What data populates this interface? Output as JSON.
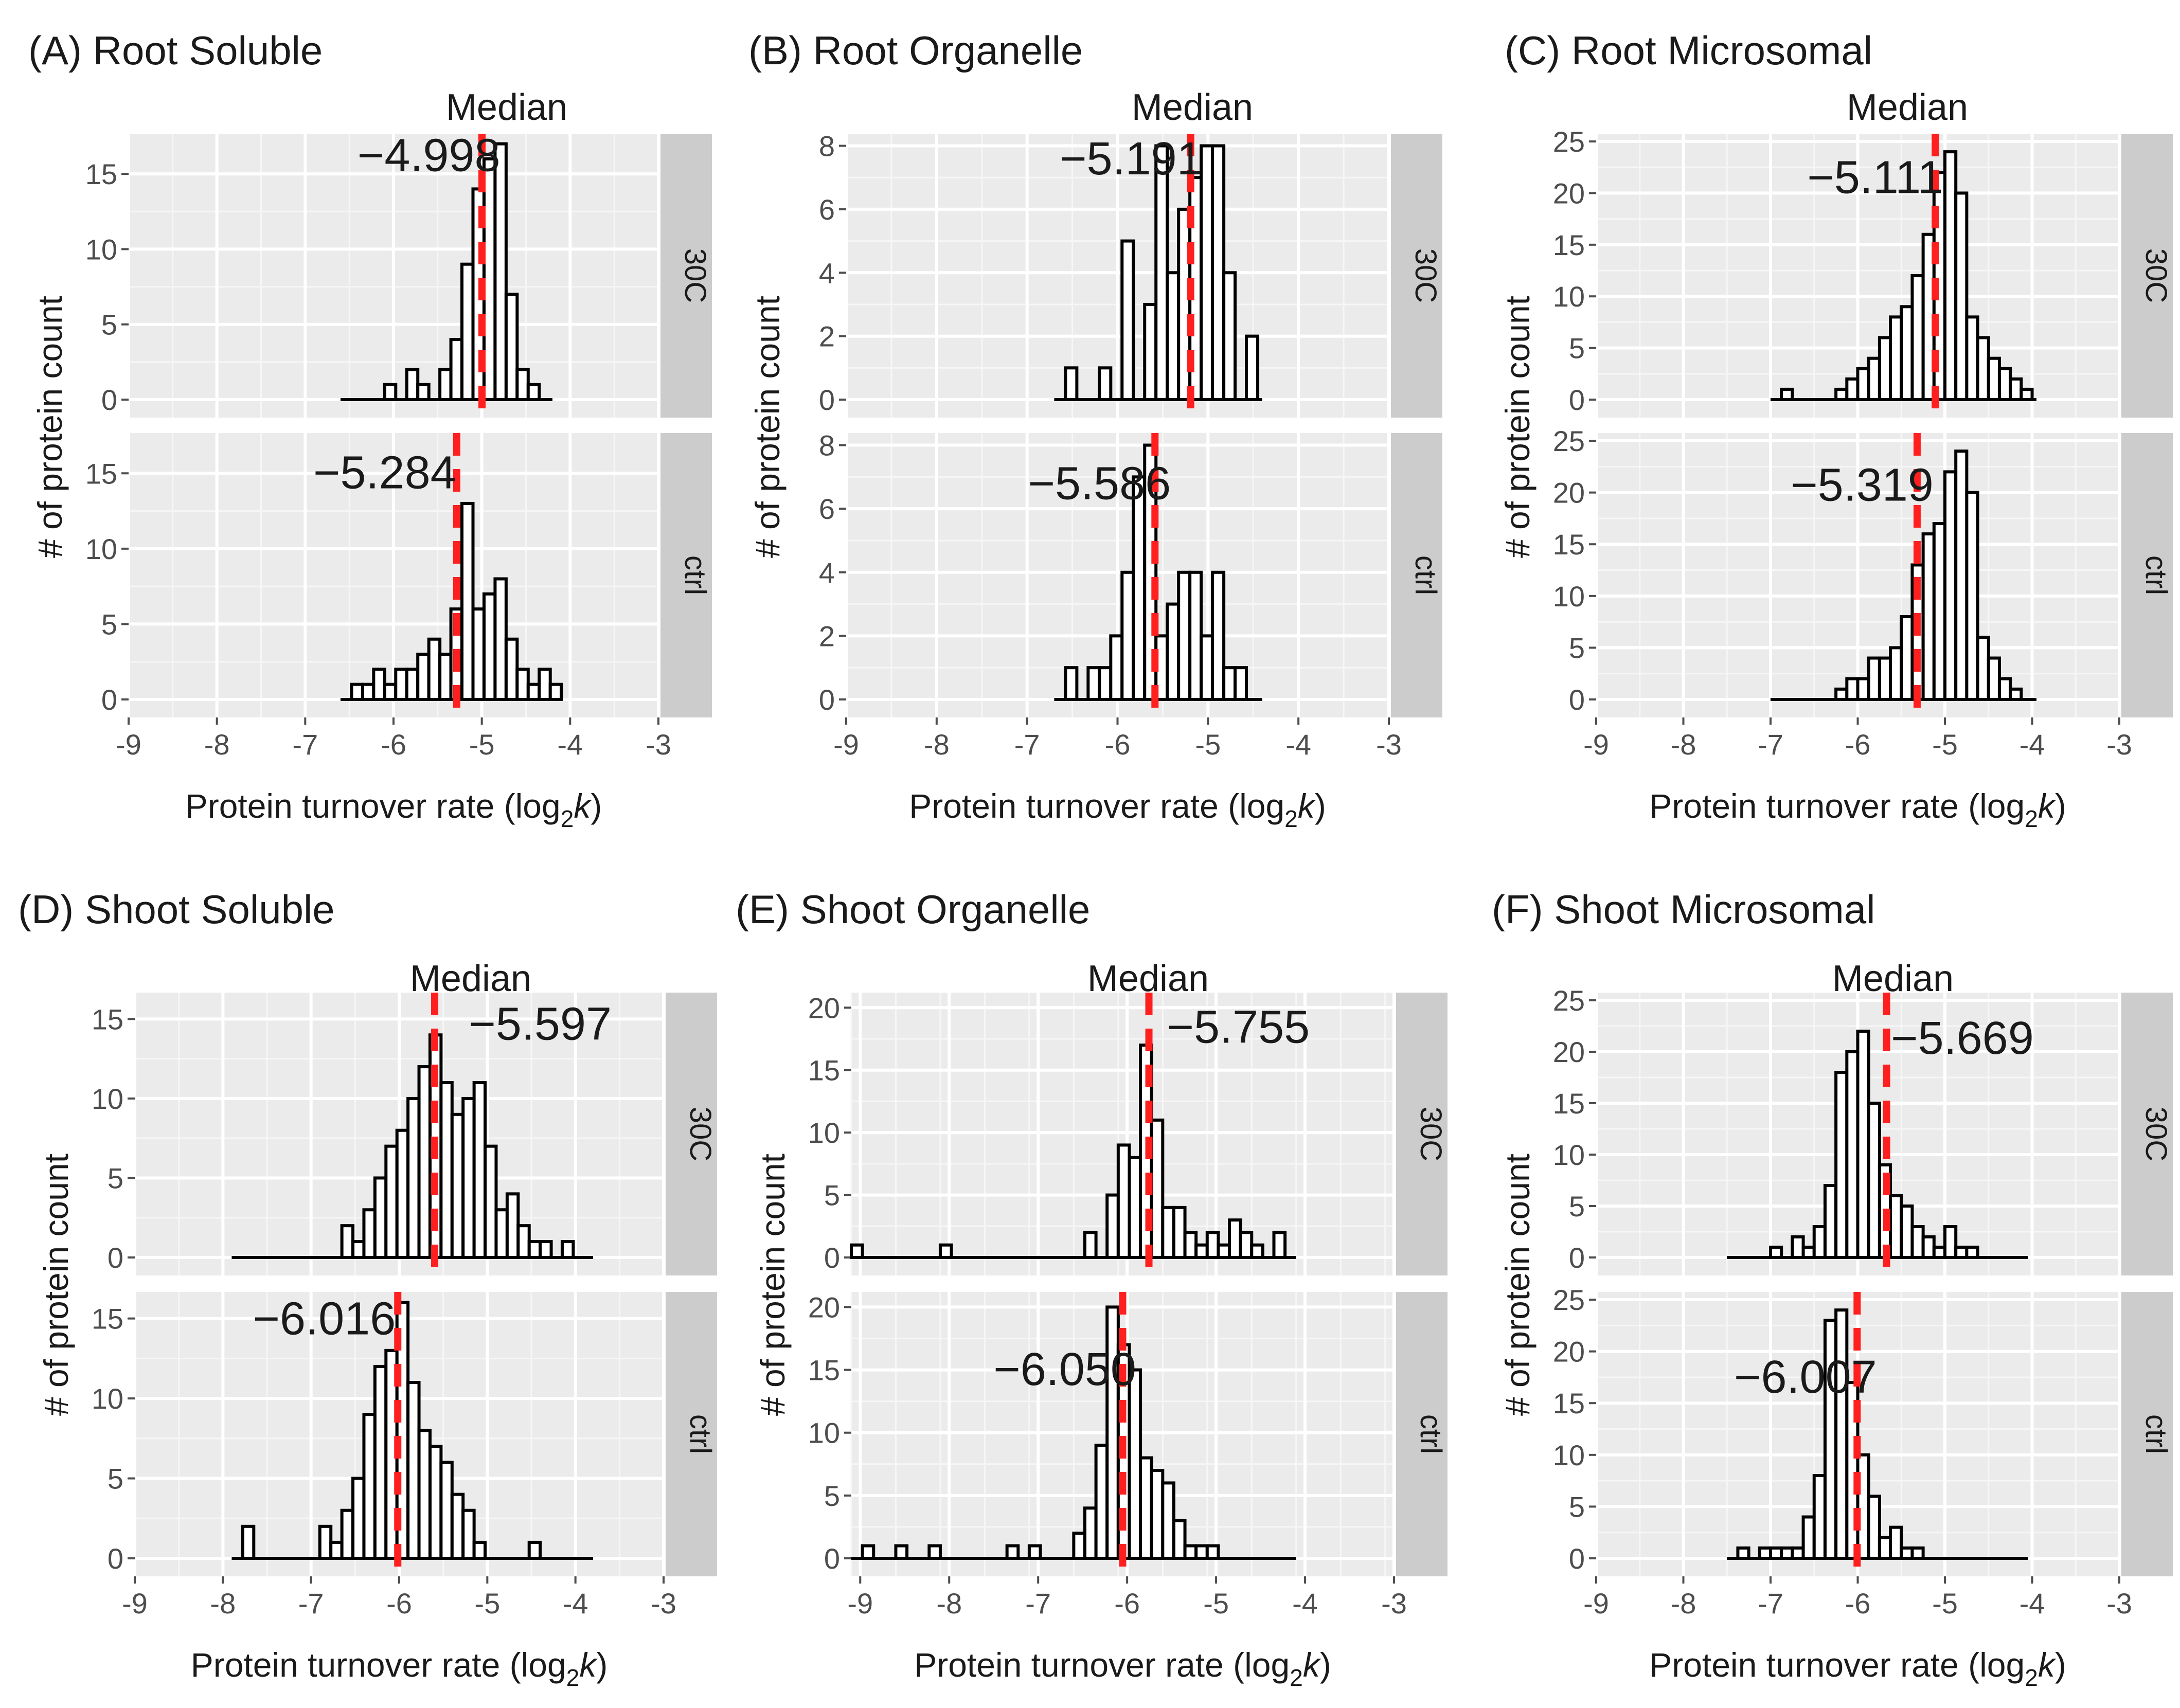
{
  "chart_data": [
    {
      "type": "histogram",
      "panel_label": "(A) Root Soluble",
      "title": "Median",
      "xlabel_main": "Protein turnover rate (log",
      "xlabel_sub": "2",
      "xlabel_k": "k",
      "xlabel_close": ")",
      "ylabel": "# of protein count",
      "xlim": [
        -9,
        -3
      ],
      "x_ticks": [
        "-9",
        "-8",
        "-7",
        "-6",
        "-5",
        "-4",
        "-3"
      ],
      "x_tick_values": [
        -9,
        -8,
        -7,
        -6,
        -5,
        -4,
        -3
      ],
      "bin_start": -6.6,
      "bin_width": 0.125,
      "baseline_end": -4.2,
      "facets": [
        {
          "name": "30C",
          "ylim": [
            0,
            17.5
          ],
          "y_ticks": [
            "0",
            "5",
            "10",
            "15"
          ],
          "y_tick_values": [
            0,
            5,
            10,
            15
          ],
          "counts": [
            0,
            0,
            0,
            0,
            1,
            0,
            2,
            1,
            0,
            2,
            4,
            9,
            14,
            16,
            17,
            7,
            2,
            1,
            0
          ],
          "median": -4.998,
          "median_label": "−4.998",
          "label_x": -5.6,
          "label_y": 15.2
        },
        {
          "name": "ctrl",
          "ylim": [
            0,
            17.5
          ],
          "y_ticks": [
            "0",
            "5",
            "10",
            "15"
          ],
          "y_tick_values": [
            0,
            5,
            10,
            15
          ],
          "counts": [
            0,
            1,
            1,
            2,
            1,
            2,
            2,
            3,
            4,
            3,
            6,
            13,
            6,
            7,
            8,
            4,
            2,
            1,
            2,
            1
          ],
          "median": -5.284,
          "median_label": "−5.284",
          "label_x": -6.1,
          "label_y": 14.0
        }
      ]
    },
    {
      "type": "histogram",
      "panel_label": "(B) Root Organelle",
      "title": "Median",
      "xlabel_main": "Protein turnover rate (log",
      "xlabel_sub": "2",
      "xlabel_k": "k",
      "xlabel_close": ")",
      "ylabel": "# of protein count",
      "xlim": [
        -9,
        -3
      ],
      "x_ticks": [
        "-9",
        "-8",
        "-7",
        "-6",
        "-5",
        "-4",
        "-3"
      ],
      "x_tick_values": [
        -9,
        -8,
        -7,
        -6,
        -5,
        -4,
        -3
      ],
      "bin_start": -6.7,
      "bin_width": 0.125,
      "baseline_end": -4.4,
      "facets": [
        {
          "name": "30C",
          "ylim": [
            0,
            8.3
          ],
          "y_ticks": [
            "0",
            "2",
            "4",
            "6",
            "8"
          ],
          "y_tick_values": [
            0,
            2,
            4,
            6,
            8
          ],
          "counts": [
            0,
            1,
            0,
            0,
            1,
            0,
            5,
            0,
            3,
            8,
            4,
            6,
            7,
            8,
            8,
            4,
            0,
            2
          ],
          "median": -5.191,
          "median_label": "−5.191",
          "label_x": -5.85,
          "label_y": 7.1
        },
        {
          "name": "ctrl",
          "ylim": [
            0,
            8.3
          ],
          "y_ticks": [
            "0",
            "2",
            "4",
            "6",
            "8"
          ],
          "y_tick_values": [
            0,
            2,
            4,
            6,
            8
          ],
          "counts": [
            0,
            1,
            0,
            1,
            1,
            2,
            4,
            7,
            8,
            2,
            3,
            4,
            4,
            2,
            4,
            1,
            1,
            0
          ],
          "median": -5.586,
          "median_label": "−5.586",
          "label_x": -6.2,
          "label_y": 6.3
        }
      ]
    },
    {
      "type": "histogram",
      "panel_label": "(C) Root Microsomal",
      "title": "Median",
      "xlabel_main": "Protein turnover rate (log",
      "xlabel_sub": "2",
      "xlabel_k": "k",
      "xlabel_close": ")",
      "ylabel": "# of protein count",
      "xlim": [
        -9,
        -3
      ],
      "x_ticks": [
        "-9",
        "-8",
        "-7",
        "-6",
        "-5",
        "-4",
        "-3"
      ],
      "x_tick_values": [
        -9,
        -8,
        -7,
        -6,
        -5,
        -4,
        -3
      ],
      "bin_start": -7.0,
      "bin_width": 0.125,
      "baseline_end": -3.95,
      "facets": [
        {
          "name": "30C",
          "ylim": [
            0,
            25.5
          ],
          "y_ticks": [
            "0",
            "5",
            "10",
            "15",
            "20",
            "25"
          ],
          "y_tick_values": [
            0,
            5,
            10,
            15,
            20,
            25
          ],
          "counts": [
            0,
            1,
            0,
            0,
            0,
            0,
            1,
            2,
            3,
            4,
            6,
            8,
            9,
            12,
            16,
            22,
            24,
            20,
            8,
            6,
            4,
            3,
            2,
            1,
            0
          ],
          "median": -5.111,
          "median_label": "−5.111",
          "label_x": -5.8,
          "label_y": 20.0
        },
        {
          "name": "ctrl",
          "ylim": [
            0,
            25.5
          ],
          "y_ticks": [
            "0",
            "5",
            "10",
            "15",
            "20",
            "25"
          ],
          "y_tick_values": [
            0,
            5,
            10,
            15,
            20,
            25
          ],
          "counts": [
            0,
            0,
            0,
            0,
            0,
            0,
            1,
            2,
            2,
            4,
            4,
            5,
            8,
            13,
            16,
            17,
            22,
            24,
            20,
            6,
            4,
            2,
            1,
            0
          ],
          "median": -5.319,
          "median_label": "−5.319",
          "label_x": -5.95,
          "label_y": 19.2
        }
      ]
    },
    {
      "type": "histogram",
      "panel_label": "(D) Shoot Soluble",
      "title": "Median",
      "xlabel_main": "Protein turnover rate (log",
      "xlabel_sub": "2",
      "xlabel_k": "k",
      "xlabel_close": ")",
      "ylabel": "# of protein count",
      "xlim": [
        -9,
        -3
      ],
      "x_ticks": [
        "-9",
        "-8",
        "-7",
        "-6",
        "-5",
        "-4",
        "-3"
      ],
      "x_tick_values": [
        -9,
        -8,
        -7,
        -6,
        -5,
        -4,
        -3
      ],
      "bin_start": -7.9,
      "bin_width": 0.125,
      "baseline_end": -3.8,
      "facets": [
        {
          "name": "30C",
          "ylim": [
            0,
            16.5
          ],
          "y_ticks": [
            "0",
            "5",
            "10",
            "15"
          ],
          "y_tick_values": [
            0,
            5,
            10,
            15
          ],
          "counts": [
            0,
            0,
            0,
            0,
            0,
            0,
            0,
            0,
            0,
            0,
            2,
            1,
            3,
            5,
            7,
            8,
            10,
            12,
            14,
            11,
            9,
            10,
            11,
            7,
            3,
            4,
            2,
            1,
            1,
            0,
            1,
            0
          ],
          "median": -5.597,
          "median_label": "−5.597",
          "label_x": -4.4,
          "label_y": 13.7
        },
        {
          "name": "ctrl",
          "ylim": [
            0,
            16.5
          ],
          "y_ticks": [
            "0",
            "5",
            "10",
            "15"
          ],
          "y_tick_values": [
            0,
            5,
            10,
            15
          ],
          "counts": [
            0,
            2,
            0,
            0,
            0,
            0,
            0,
            0,
            2,
            1,
            3,
            5,
            9,
            12,
            13,
            16,
            11,
            8,
            7,
            6,
            4,
            3,
            1,
            0,
            0,
            0,
            0,
            1,
            0,
            0,
            0,
            0
          ],
          "median": -6.016,
          "median_label": "−6.016",
          "label_x": -6.85,
          "label_y": 14.0
        }
      ]
    },
    {
      "type": "histogram",
      "panel_label": "(E) Shoot Organelle",
      "title": "Median",
      "xlabel_main": "Protein turnover rate (log",
      "xlabel_sub": "2",
      "xlabel_k": "k",
      "xlabel_close": ")",
      "ylabel": "# of protein count",
      "xlim": [
        -9.1,
        -3
      ],
      "x_ticks": [
        "-9",
        "-8",
        "-7",
        "-6",
        "-5",
        "-4",
        "-3"
      ],
      "x_tick_values": [
        -9,
        -8,
        -7,
        -6,
        -5,
        -4,
        -3
      ],
      "bin_start": -9.1,
      "bin_width": 0.125,
      "baseline_end": -4.1,
      "facets": [
        {
          "name": "30C",
          "ylim": [
            0,
            21
          ],
          "y_ticks": [
            "0",
            "5",
            "10",
            "15",
            "20"
          ],
          "y_tick_values": [
            0,
            5,
            10,
            15,
            20
          ],
          "counts": [
            1,
            0,
            0,
            0,
            0,
            0,
            0,
            0,
            1,
            0,
            0,
            0,
            0,
            0,
            0,
            0,
            0,
            0,
            0,
            0,
            0,
            2,
            0,
            5,
            9,
            8,
            17,
            11,
            4,
            4,
            2,
            1,
            2,
            1,
            3,
            2,
            1,
            0,
            2,
            0
          ],
          "median": -5.755,
          "median_label": "−5.755",
          "label_x": -4.75,
          "label_y": 17.2
        },
        {
          "name": "ctrl",
          "ylim": [
            0,
            21
          ],
          "y_ticks": [
            "0",
            "5",
            "10",
            "15",
            "20"
          ],
          "y_tick_values": [
            0,
            5,
            10,
            15,
            20
          ],
          "counts": [
            0,
            1,
            0,
            0,
            1,
            0,
            0,
            1,
            0,
            0,
            0,
            0,
            0,
            0,
            1,
            0,
            1,
            0,
            0,
            0,
            2,
            4,
            9,
            20,
            17,
            15,
            8,
            7,
            6,
            3,
            1,
            1,
            1,
            0,
            0,
            0,
            0,
            0,
            0,
            0
          ],
          "median": -6.05,
          "median_label": "−6.050",
          "label_x": -6.7,
          "label_y": 13.8
        }
      ]
    },
    {
      "type": "histogram",
      "panel_label": "(F) Shoot Microsomal",
      "title": "Median",
      "xlabel_main": "Protein turnover rate (log",
      "xlabel_sub": "2",
      "xlabel_k": "k",
      "xlabel_close": ")",
      "ylabel": "# of protein count",
      "xlim": [
        -9,
        -3
      ],
      "x_ticks": [
        "-9",
        "-8",
        "-7",
        "-6",
        "-5",
        "-4",
        "-3"
      ],
      "x_tick_values": [
        -9,
        -8,
        -7,
        -6,
        -5,
        -4,
        -3
      ],
      "bin_start": -7.5,
      "bin_width": 0.125,
      "baseline_end": -4.05,
      "facets": [
        {
          "name": "30C",
          "ylim": [
            0,
            25.5
          ],
          "y_ticks": [
            "0",
            "5",
            "10",
            "15",
            "20",
            "25"
          ],
          "y_tick_values": [
            0,
            5,
            10,
            15,
            20,
            25
          ],
          "counts": [
            0,
            0,
            0,
            0,
            1,
            0,
            2,
            1,
            3,
            7,
            18,
            20,
            22,
            15,
            9,
            6,
            5,
            3,
            2,
            1,
            3,
            1,
            1,
            0
          ],
          "median": -5.669,
          "median_label": "−5.669",
          "label_x": -4.8,
          "label_y": 19.8
        },
        {
          "name": "ctrl",
          "ylim": [
            0,
            25.5
          ],
          "y_ticks": [
            "0",
            "5",
            "10",
            "15",
            "20",
            "25"
          ],
          "y_tick_values": [
            0,
            5,
            10,
            15,
            20,
            25
          ],
          "counts": [
            0,
            1,
            0,
            1,
            1,
            1,
            1,
            4,
            8,
            23,
            24,
            17,
            10,
            6,
            2,
            3,
            1,
            1,
            0,
            0,
            0,
            0,
            0
          ],
          "median": -6.007,
          "median_label": "−6.007",
          "label_x": -6.6,
          "label_y": 16.0
        }
      ]
    }
  ]
}
